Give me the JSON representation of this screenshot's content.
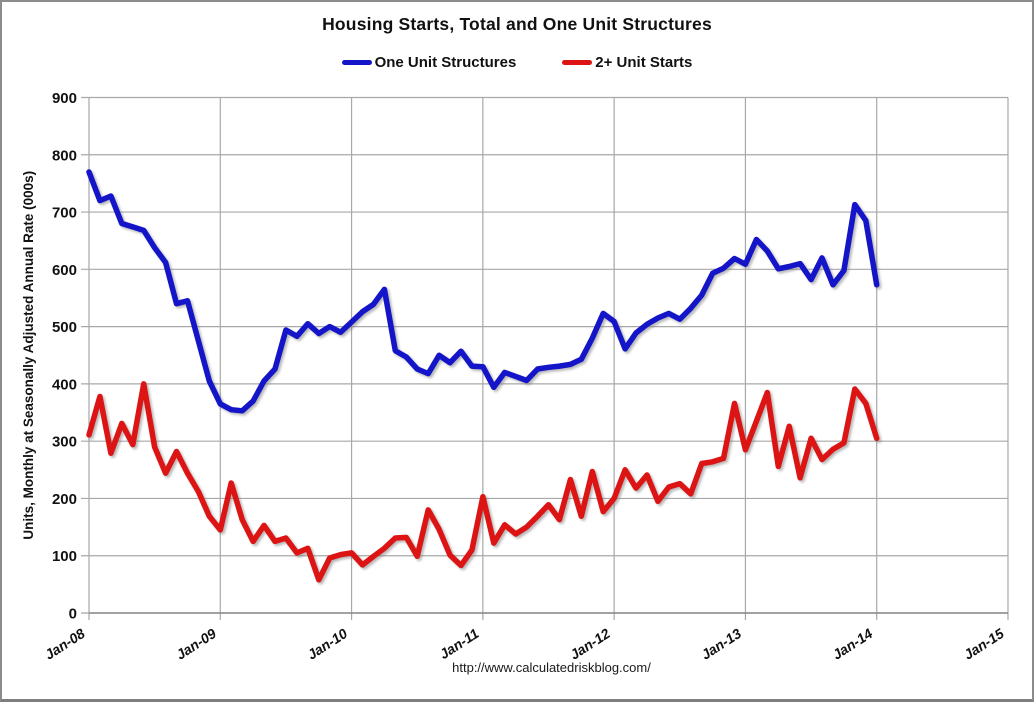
{
  "header": {
    "title": "Housing Starts, Total and One Unit Structures"
  },
  "legend": [
    {
      "label": "One Unit Structures",
      "color": "#1414c8"
    },
    {
      "label": "2+ Unit Starts",
      "color": "#dc1414"
    }
  ],
  "footer": {
    "source_url": "http://www.calculatedriskblog.com/"
  },
  "chart_data": {
    "type": "line",
    "title": "Housing Starts, Total and One Unit Structures",
    "xlabel": "",
    "ylabel": "Units, Monthly at Seasonally Adjusted Annual Rate (000s)",
    "ylim": [
      0,
      900
    ],
    "ytick_step": 100,
    "grid": true,
    "legend_position": "top-center",
    "x_total_months": 84,
    "x_tick_every_months": 12,
    "x_tick_labels": [
      "Jan-08",
      "Jan-09",
      "Jan-10",
      "Jan-11",
      "Jan-12",
      "Jan-13",
      "Jan-14",
      "Jan-15"
    ],
    "series": [
      {
        "name": "One Unit Structures",
        "color": "#1414c8",
        "start_month": "Jan-08",
        "end_month": "Jan-14",
        "values": [
          770,
          720,
          728,
          680,
          674,
          668,
          638,
          612,
          540,
          545,
          475,
          405,
          365,
          355,
          353,
          370,
          405,
          426,
          494,
          483,
          505,
          488,
          500,
          490,
          508,
          526,
          539,
          565,
          458,
          447,
          426,
          418,
          450,
          437,
          457,
          431,
          430,
          394,
          420,
          413,
          406,
          426,
          429,
          431,
          434,
          443,
          480,
          523,
          509,
          461,
          489,
          504,
          515,
          523,
          513,
          532,
          555,
          593,
          602,
          619,
          609,
          652,
          632,
          601,
          605,
          610,
          582,
          620,
          573,
          598,
          713,
          685,
          573
        ]
      },
      {
        "name": "2+ Unit Starts",
        "color": "#dc1414",
        "start_month": "Jan-08",
        "end_month": "Jan-14",
        "values": [
          311,
          378,
          279,
          331,
          294,
          400,
          290,
          244,
          282,
          244,
          212,
          169,
          145,
          227,
          163,
          125,
          153,
          125,
          131,
          105,
          113,
          58,
          96,
          102,
          105,
          84,
          99,
          113,
          131,
          132,
          99,
          180,
          146,
          101,
          83,
          110,
          203,
          122,
          154,
          138,
          150,
          169,
          189,
          163,
          233,
          169,
          247,
          177,
          200,
          250,
          218,
          241,
          195,
          220,
          226,
          208,
          261,
          264,
          270,
          366,
          285,
          335,
          385,
          256,
          326,
          236,
          305,
          268,
          286,
          297,
          391,
          366,
          305
        ]
      }
    ]
  }
}
